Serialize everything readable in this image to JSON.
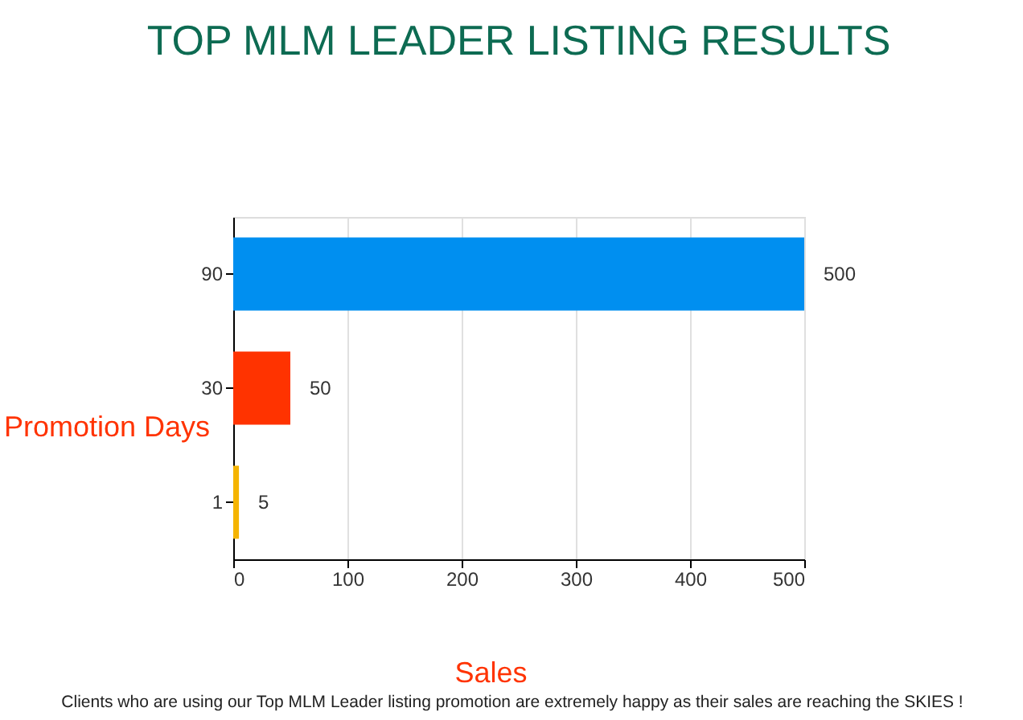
{
  "chart_data": {
    "type": "bar",
    "orientation": "horizontal",
    "title": "TOP MLM LEADER LISTING RESULTS",
    "xlabel": "Sales",
    "ylabel": "Promotion Days",
    "categories": [
      "90",
      "30",
      "1"
    ],
    "values": [
      500,
      50,
      5
    ],
    "colors": [
      "#008ff0",
      "#ff3300",
      "#f5b400"
    ],
    "xlim": [
      0,
      500
    ],
    "xticks": [
      0,
      100,
      200,
      300,
      400,
      500
    ],
    "grid": "x",
    "data_labels": true,
    "annotations": [
      "Clients who are using our Top MLM Leader listing promotion are extremely happy as their sales are reaching the SKIES !"
    ]
  }
}
